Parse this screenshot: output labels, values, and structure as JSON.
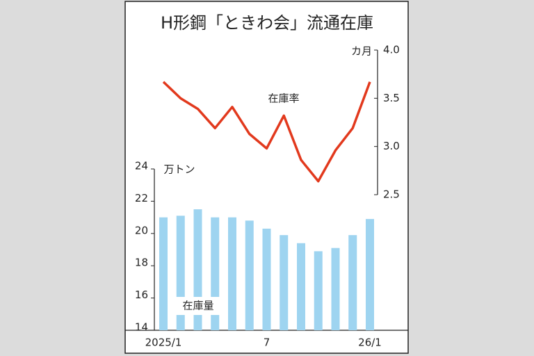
{
  "chart_data": {
    "type": "bar-line",
    "title": "H形鋼「ときわ会」流通在庫",
    "categories": [
      "2025/1",
      null,
      null,
      null,
      null,
      null,
      "7",
      null,
      null,
      null,
      null,
      null,
      "26/1"
    ],
    "series": [
      {
        "name": "在庫量",
        "type": "bar",
        "axis": "y",
        "color": "#9ed4f0",
        "values": [
          21.0,
          21.1,
          21.5,
          21.0,
          21.0,
          20.8,
          20.3,
          19.9,
          19.4,
          18.9,
          19.1,
          19.9,
          20.9
        ]
      },
      {
        "name": "在庫率",
        "type": "line",
        "axis": "y2",
        "color": "#e2391d",
        "values": [
          3.67,
          3.5,
          3.39,
          3.19,
          3.41,
          3.13,
          2.98,
          3.32,
          2.86,
          2.64,
          2.96,
          3.19,
          3.67
        ]
      }
    ],
    "ylabel": "万トン",
    "y2label": "カ月",
    "ylim": [
      14,
      24
    ],
    "yticks": [
      14,
      16,
      18,
      20,
      22,
      24
    ],
    "y2lim": [
      2.5,
      4.0
    ],
    "y2ticks": [
      2.5,
      {
        "value": 3,
        "label": "3.0"
      },
      3.5,
      {
        "value": 4,
        "label": "4.0"
      }
    ]
  }
}
